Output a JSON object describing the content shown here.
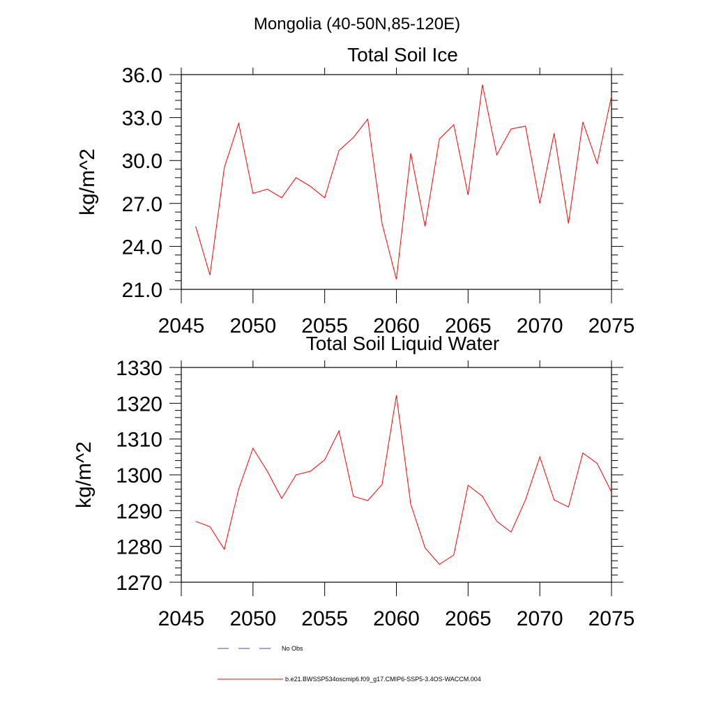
{
  "figure": {
    "title": "Mongolia (40-50N,85-120E)"
  },
  "chart_data": [
    {
      "type": "line",
      "title": "Total Soil Ice",
      "xlabel": "",
      "ylabel": "kg/m^2",
      "xlim": [
        2045,
        2075
      ],
      "ylim": [
        21,
        36
      ],
      "xticks": [
        "2045",
        "2050",
        "2055",
        "2060",
        "2065",
        "2070",
        "2075"
      ],
      "yticks": [
        "21.0",
        "24.0",
        "27.0",
        "30.0",
        "33.0",
        "36.0"
      ],
      "x": [
        2046,
        2047,
        2048,
        2049,
        2050,
        2051,
        2052,
        2053,
        2054,
        2055,
        2056,
        2057,
        2058,
        2059,
        2060,
        2061,
        2062,
        2063,
        2064,
        2065,
        2066,
        2067,
        2068,
        2069,
        2070,
        2071,
        2072,
        2073,
        2074,
        2075
      ],
      "series": [
        {
          "name": "b.e21.BWSSP534oscmip6.f09_g17.CMIP6-SSP5-3.4OS-WACCM.004",
          "color": "#ff0000",
          "values": [
            25.4,
            22.0,
            29.5,
            32.6,
            27.7,
            28.0,
            27.4,
            28.8,
            28.2,
            27.4,
            30.7,
            31.6,
            32.9,
            25.6,
            21.7,
            30.5,
            25.4,
            31.5,
            32.5,
            27.6,
            35.3,
            30.4,
            32.2,
            32.4,
            27.0,
            31.9,
            25.6,
            32.7,
            29.8,
            34.5
          ]
        }
      ]
    },
    {
      "type": "line",
      "title": "Total Soil Liquid Water",
      "xlabel": "",
      "ylabel": "kg/m^2",
      "xlim": [
        2045,
        2075
      ],
      "ylim": [
        1270,
        1330
      ],
      "xticks": [
        "2045",
        "2050",
        "2055",
        "2060",
        "2065",
        "2070",
        "2075"
      ],
      "yticks": [
        "1270",
        "1280",
        "1290",
        "1300",
        "1310",
        "1320",
        "1330"
      ],
      "x": [
        2046,
        2047,
        2048,
        2049,
        2050,
        2051,
        2052,
        2053,
        2054,
        2055,
        2056,
        2057,
        2058,
        2059,
        2060,
        2061,
        2062,
        2063,
        2064,
        2065,
        2066,
        2067,
        2068,
        2069,
        2070,
        2071,
        2072,
        2073,
        2074,
        2075
      ],
      "series": [
        {
          "name": "b.e21.BWSSP534oscmip6.f09_g17.CMIP6-SSP5-3.4OS-WACCM.004",
          "color": "#ff0000",
          "values": [
            1287,
            1285.5,
            1279.2,
            1296,
            1307.4,
            1301,
            1293.4,
            1300,
            1301,
            1304.2,
            1312.3,
            1294,
            1292.8,
            1297.3,
            1322.2,
            1291.8,
            1279.6,
            1275,
            1277.6,
            1297.1,
            1294,
            1287,
            1284,
            1293,
            1305,
            1293,
            1291,
            1306.1,
            1303.2,
            1295.2
          ]
        }
      ]
    }
  ],
  "legend": {
    "items": [
      {
        "label": "No Obs",
        "style": "dashed",
        "color": "#4a4aa0"
      },
      {
        "label": "b.e21.BWSSP534oscmip6.f09_g17.CMIP6-SSP5-3.4OS-WACCM.004",
        "style": "solid",
        "color": "#ff0000"
      }
    ]
  }
}
